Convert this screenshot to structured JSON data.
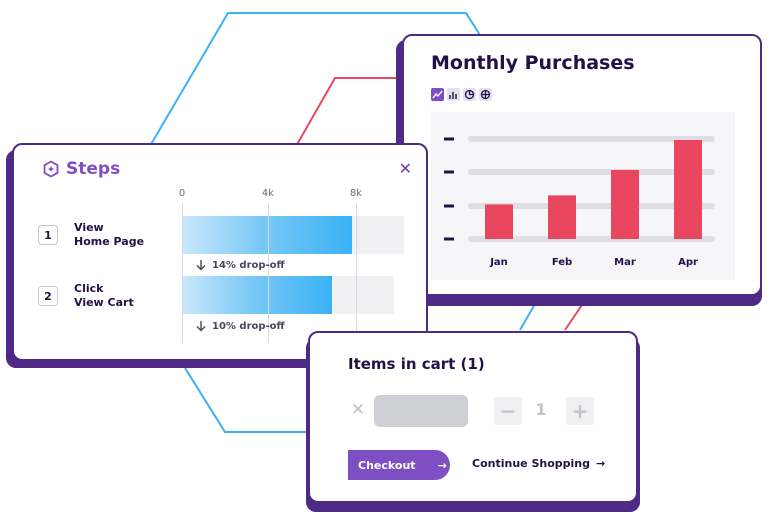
{
  "purchases": {
    "title": "Monthly Purchases",
    "tools": [
      "line-chart-icon",
      "bar-chart-icon",
      "pie-chart-icon",
      "grid-icon"
    ],
    "active_tool": "line-chart-icon"
  },
  "chart_data": {
    "type": "bar",
    "title": "Monthly Purchases",
    "categories": [
      "Jan",
      "Feb",
      "Mar",
      "Apr"
    ],
    "values": [
      38,
      48,
      76,
      109
    ],
    "ylim": [
      0,
      120
    ],
    "grid": true,
    "bar_color": "#e8475f"
  },
  "steps": {
    "title": "Steps",
    "axis_labels": [
      "0",
      "4k",
      "8k"
    ],
    "items": [
      {
        "number": "1",
        "action": "View",
        "target": "Home Page",
        "value": 7.8,
        "total": 10,
        "dropoff": "14% drop-off"
      },
      {
        "number": "2",
        "action": "Click",
        "target": "View Cart",
        "value": 6.9,
        "total": 9.5,
        "dropoff": "10% drop-off"
      }
    ],
    "bar_color": "#3ab2f5",
    "brand_color": "#7e4fc2"
  },
  "cart": {
    "title": "Items in cart (1)",
    "quantity": "1",
    "decrease_label": "−",
    "increase_label": "+",
    "checkout_label": "Checkout",
    "checkout_arrow": "→",
    "continue_label": "Continue Shopping",
    "continue_arrow": "→"
  },
  "colors": {
    "frame": "#4e2a84",
    "accent": "#7e4fc2",
    "line_blue": "#3ab2f5",
    "line_red": "#e8475f"
  }
}
